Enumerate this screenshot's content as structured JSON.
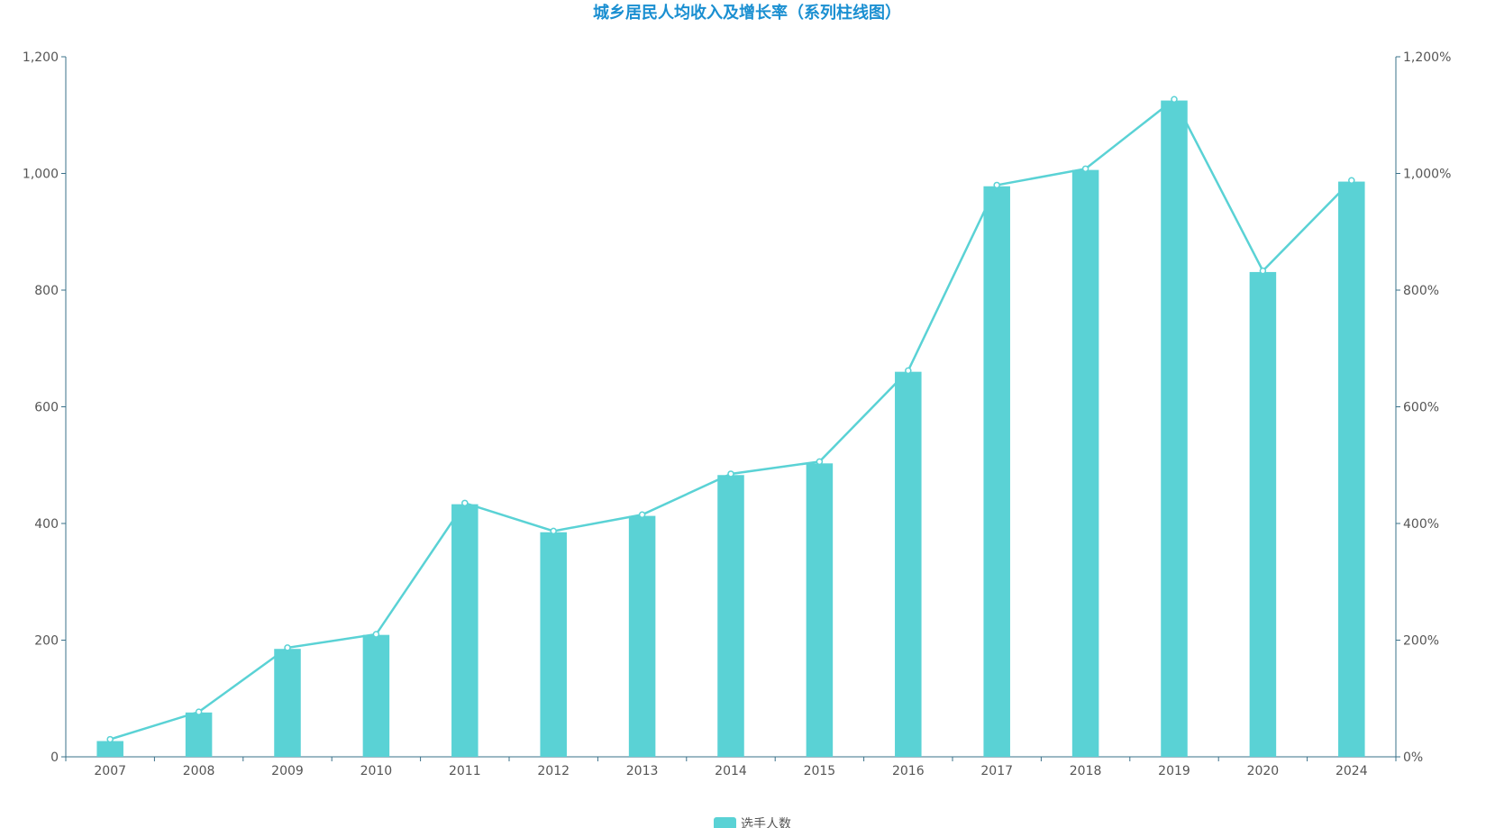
{
  "chart_data": {
    "type": "bar",
    "title": "城乡居民人均收入及增长率（系列柱线图）",
    "categories": [
      "2007",
      "2008",
      "2009",
      "2010",
      "2011",
      "2012",
      "2013",
      "2014",
      "2015",
      "2016",
      "2017",
      "2018",
      "2019",
      "2020",
      "2024"
    ],
    "series": [
      {
        "name": "选手人数",
        "type": "bar",
        "axis": "left",
        "values": [
          27,
          76,
          185,
          209,
          433,
          385,
          413,
          483,
          503,
          660,
          978,
          1006,
          1125,
          831,
          986
        ]
      },
      {
        "type": "line",
        "axis": "right",
        "values": [
          30,
          77,
          187,
          210,
          435,
          387,
          415,
          485,
          506,
          662,
          980,
          1008,
          1127,
          833,
          988
        ]
      }
    ],
    "ylim_left": [
      0,
      1200
    ],
    "yticks_left": [
      "0",
      "200",
      "400",
      "600",
      "800",
      "1,000",
      "1,200"
    ],
    "ylim_right": [
      0,
      1200
    ],
    "yticks_right": [
      "0%",
      "200%",
      "400%",
      "600%",
      "800%",
      "1,000%",
      "1,200%"
    ],
    "grid": false,
    "legend_position": "bottom-center",
    "colors": {
      "bar": "#5ad2d5",
      "line": "#5ad2d5",
      "title": "#1a8fd1",
      "axis": "#3a7089"
    }
  }
}
